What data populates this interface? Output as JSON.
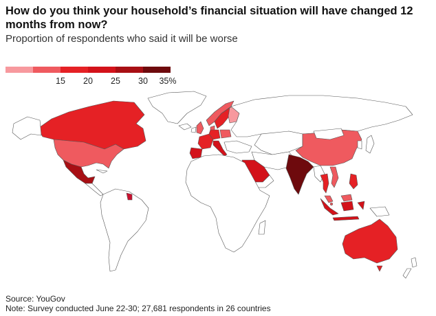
{
  "title": "How do you think your household’s financial situation will have changed 12 months from now?",
  "subtitle": "Proportion of respondents who said it will be worse",
  "legend": {
    "colors": [
      "#f7999e",
      "#ef5a5f",
      "#e52125",
      "#d3121a",
      "#a80f14",
      "#6e0a0d"
    ],
    "ticks": [
      "15",
      "20",
      "25",
      "30",
      "35%"
    ]
  },
  "source": "Source: YouGov",
  "note": "Note: Survey conducted June 22-30; 27,681 respondents in 26 countries",
  "chart_data": {
    "type": "choropleth",
    "title": "How do you think your household’s financial situation will have changed 12 months from now?",
    "subtitle": "Proportion of respondents who said it will be worse",
    "legend_bins": [
      [
        10,
        15
      ],
      [
        15,
        20
      ],
      [
        20,
        25
      ],
      [
        25,
        30
      ],
      [
        30,
        35
      ],
      [
        35,
        40
      ]
    ],
    "legend_labels": [
      "15",
      "20",
      "25",
      "30",
      "35%"
    ],
    "highlighted_regions_by_color": [
      {
        "color": "#6e0a0d",
        "regions": [
          "India-region"
        ]
      },
      {
        "color": "#a80f14",
        "regions": [
          "Mexico-region"
        ]
      },
      {
        "color": "#d3121a",
        "regions": [
          "Saudi Arabia-region",
          "Indonesia-region",
          "Italy-region",
          "Spain-region"
        ]
      },
      {
        "color": "#e52125",
        "regions": [
          "Canada-region",
          "Australia-region",
          "Thailand-region",
          "Philippines-region",
          "Sweden-region",
          "France-region",
          "Germany-region"
        ]
      },
      {
        "color": "#ef5a5f",
        "regions": [
          "United States-region",
          "China-region",
          "Vietnam-region",
          "Malaysia-region",
          "Poland-region",
          "Norway-region",
          "Denmark-region",
          "Singapore-region",
          "UK-region"
        ]
      },
      {
        "color": "#f7999e",
        "regions": [
          "Finland-region"
        ]
      },
      {
        "color": "#c8102e",
        "regions": [
          "Guyana-region"
        ]
      }
    ]
  }
}
